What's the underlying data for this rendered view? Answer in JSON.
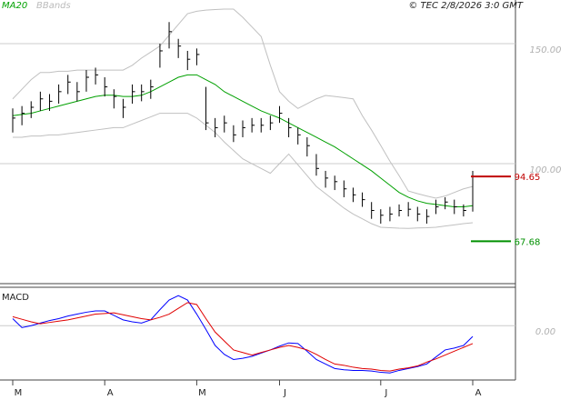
{
  "chart_data": [
    {
      "type": "ohlc",
      "source": "© TEC 2/8/2026 3:0 GMT",
      "categories": [
        "M",
        null,
        null,
        null,
        null,
        null,
        null,
        null,
        null,
        null,
        "A",
        null,
        null,
        null,
        null,
        null,
        null,
        null,
        null,
        null,
        "M",
        null,
        null,
        null,
        null,
        null,
        null,
        null,
        null,
        "J",
        null,
        null,
        null,
        null,
        null,
        null,
        null,
        null,
        null,
        null,
        "J",
        null,
        null,
        null,
        null,
        null,
        null,
        null,
        null,
        null,
        "A"
      ],
      "high": [
        123,
        124,
        126,
        130,
        129,
        133,
        137,
        134,
        139,
        140,
        136,
        131,
        127,
        133,
        133,
        135,
        150,
        159,
        152,
        147,
        148,
        132,
        119,
        120,
        116,
        118,
        119,
        119,
        120,
        124,
        119,
        115,
        111,
        104,
        97,
        95,
        93,
        90,
        88,
        84,
        81,
        82,
        83,
        84,
        82,
        81,
        85,
        86,
        85,
        83,
        97
      ],
      "low": [
        113,
        116,
        119,
        122,
        122,
        125,
        129,
        126,
        130,
        133,
        128,
        123,
        119,
        125,
        126,
        127,
        140,
        148,
        144,
        139,
        141,
        114,
        111,
        113,
        109,
        111,
        113,
        113,
        114,
        117,
        111,
        108,
        103,
        95,
        90,
        89,
        86,
        84,
        82,
        77,
        75,
        76,
        78,
        78,
        76,
        75,
        79,
        81,
        79,
        78,
        80
      ],
      "close": [
        119,
        121,
        123.5,
        127,
        126,
        130,
        134,
        130,
        136,
        137,
        132,
        128,
        123.5,
        130,
        130,
        132,
        147,
        155,
        149,
        143.5,
        145.5,
        117,
        115,
        117,
        112,
        115,
        116,
        116,
        117,
        121,
        115,
        112,
        107.5,
        98,
        94,
        92.5,
        89.5,
        87,
        85,
        80.5,
        78.5,
        79,
        80.5,
        81,
        79,
        78,
        82,
        84,
        82,
        80.5,
        94.65
      ],
      "color": "#000000",
      "series": [
        {
          "name": "MA20",
          "color": "#00a000",
          "values": [
            120,
            120.5,
            121,
            122,
            123,
            124,
            125,
            126,
            127,
            128,
            128.5,
            128.5,
            128,
            128,
            128.5,
            130,
            132,
            134,
            136,
            137,
            137,
            135,
            133,
            130,
            128,
            126,
            124,
            122,
            120.5,
            119,
            117,
            115,
            113,
            111,
            109,
            107,
            104.5,
            102,
            99.5,
            97,
            94,
            91,
            88,
            86,
            84.5,
            83.5,
            83,
            82.5,
            82,
            82,
            82.5
          ]
        },
        {
          "name": "BBands",
          "color": "#c0c0c0",
          "upper": [
            127,
            131,
            135,
            138,
            138,
            138.5,
            138.5,
            139,
            139,
            139,
            139,
            139,
            139,
            141,
            144,
            146.5,
            149,
            153.5,
            158,
            162.5,
            163.5,
            164,
            164.2,
            164.4,
            164.4,
            161,
            157,
            153,
            141,
            130,
            126,
            123,
            125,
            127,
            128.4,
            128,
            127.5,
            127,
            120,
            114,
            107.6,
            101,
            95,
            88.6,
            87.5,
            86.5,
            85.6,
            86.5,
            88,
            89.5,
            90.5
          ],
          "lower": [
            111,
            111,
            111.5,
            111.5,
            112,
            112,
            112.5,
            113,
            113.5,
            114,
            114.5,
            115,
            115,
            116.5,
            118,
            119.5,
            121,
            121,
            121,
            121,
            119,
            116,
            113,
            109,
            105.5,
            102,
            100,
            98,
            96,
            100,
            104,
            99.5,
            95,
            90.5,
            87.5,
            84.5,
            81.5,
            79,
            77,
            75,
            73.5,
            73.3,
            73.1,
            73,
            73.2,
            73.3,
            73.5,
            74,
            74.5,
            75,
            75.4
          ]
        }
      ],
      "levels": [
        {
          "value": 94.65,
          "color": "#c00000"
        },
        {
          "value": 67.68,
          "color": "#009000"
        }
      ],
      "ylim": [
        50,
        168.2
      ],
      "yticks": [
        {
          "value": 100,
          "label": "100.00"
        },
        {
          "value": 150,
          "label": "150.00"
        }
      ],
      "grid": true
    },
    {
      "type": "line",
      "title": "MACD",
      "series": [
        {
          "color": "#0000ff",
          "values": [
            1.1,
            -0.3,
            0,
            0.4,
            0.8,
            1.1,
            1.5,
            1.8,
            2.1,
            2.3,
            2.3,
            1.6,
            0.9,
            0.6,
            0.4,
            0.9,
            2.5,
            4,
            4.7,
            4,
            1.8,
            -0.6,
            -3.1,
            -4.5,
            -5.3,
            -5.1,
            -4.8,
            -4.3,
            -3.8,
            -3.2,
            -2.7,
            -2.8,
            -4,
            -5.3,
            -6,
            -6.7,
            -6.9,
            -7,
            -7,
            -7.1,
            -7.3,
            -7.4,
            -7,
            -6.7,
            -6.4,
            -6,
            -4.9,
            -3.8,
            -3.5,
            -3.1,
            -1.7
          ]
        },
        {
          "color": "#e00000",
          "values": [
            1.4,
            1,
            0.6,
            0.3,
            0.5,
            0.7,
            0.9,
            1.2,
            1.5,
            1.8,
            1.9,
            2,
            1.7,
            1.4,
            1.1,
            0.9,
            1.3,
            1.8,
            2.7,
            3.6,
            3.3,
            1.1,
            -1,
            -2.4,
            -3.8,
            -4.2,
            -4.6,
            -4.2,
            -3.8,
            -3.4,
            -3.1,
            -3.4,
            -3.8,
            -4.5,
            -5.3,
            -6,
            -6.2,
            -6.5,
            -6.7,
            -6.8,
            -7,
            -7.1,
            -6.8,
            -6.6,
            -6.3,
            -5.7,
            -5.2,
            -4.6,
            -4,
            -3.4,
            -2.8
          ]
        }
      ],
      "ylim": [
        -8.5,
        6
      ],
      "yticks": [
        {
          "value": 0,
          "label": "0.00"
        }
      ],
      "grid": true
    }
  ]
}
